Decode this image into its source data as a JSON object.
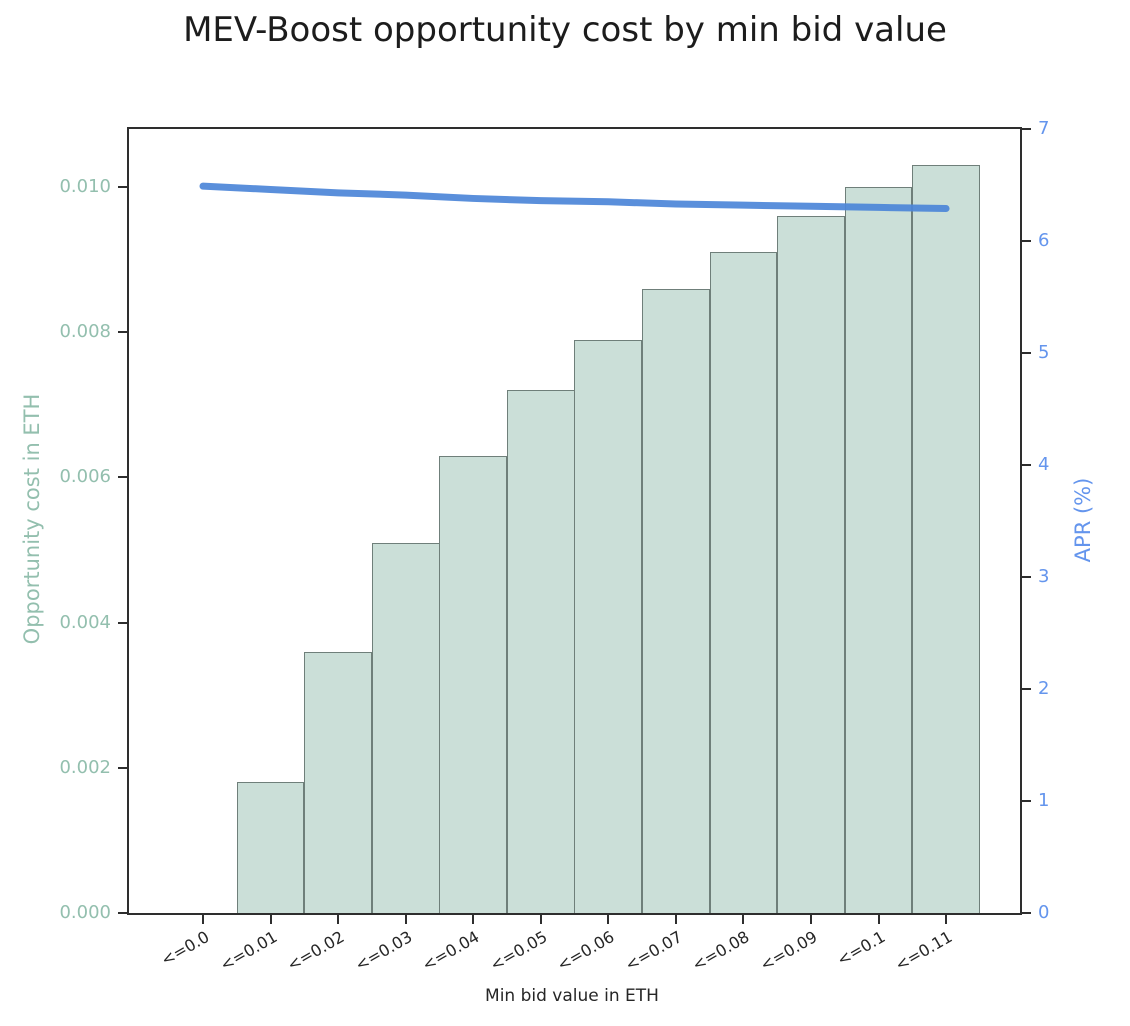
{
  "chart_data": {
    "type": "bar+line",
    "title": "MEV-Boost opportunity cost by min bid value",
    "xlabel": "Min bid value in ETH",
    "ylabel_left": "Opportunity cost in ETH",
    "ylabel_right": "APR (%)",
    "categories": [
      "<=0.0",
      "<=0.01",
      "<=0.02",
      "<=0.03",
      "<=0.04",
      "<=0.05",
      "<=0.06",
      "<=0.07",
      "<=0.08",
      "<=0.09",
      "<=0.1",
      "<=0.11"
    ],
    "series": [
      {
        "name": "Opportunity cost in ETH",
        "type": "bar",
        "axis": "left",
        "values": [
          0,
          0.0018,
          0.0036,
          0.0051,
          0.0063,
          0.0072,
          0.0079,
          0.0086,
          0.0091,
          0.0096,
          0.01,
          0.0103
        ]
      },
      {
        "name": "APR (%)",
        "type": "line",
        "axis": "right",
        "values": [
          6.49,
          6.46,
          6.43,
          6.41,
          6.38,
          6.36,
          6.35,
          6.33,
          6.32,
          6.31,
          6.3,
          6.29
        ]
      }
    ],
    "ylim_left": [
      0,
      0.0108
    ],
    "ylim_right": [
      0,
      7
    ],
    "yticks_left": [
      "0.000",
      "0.002",
      "0.004",
      "0.006",
      "0.008",
      "0.010"
    ],
    "yticks_right": [
      "0",
      "1",
      "2",
      "3",
      "4",
      "5",
      "6",
      "7"
    ],
    "grid": false,
    "legend": "none",
    "colors": {
      "bar_fill": "#cbdfd8",
      "bar_edge": "#6f7f7a",
      "line": "#4c86d8",
      "left_axis_text": "#93bfae",
      "right_axis_text": "#6495ed",
      "xtick_text": "#262626",
      "title_text": "#1c1c1c",
      "spine": "#2e2e2e"
    }
  }
}
